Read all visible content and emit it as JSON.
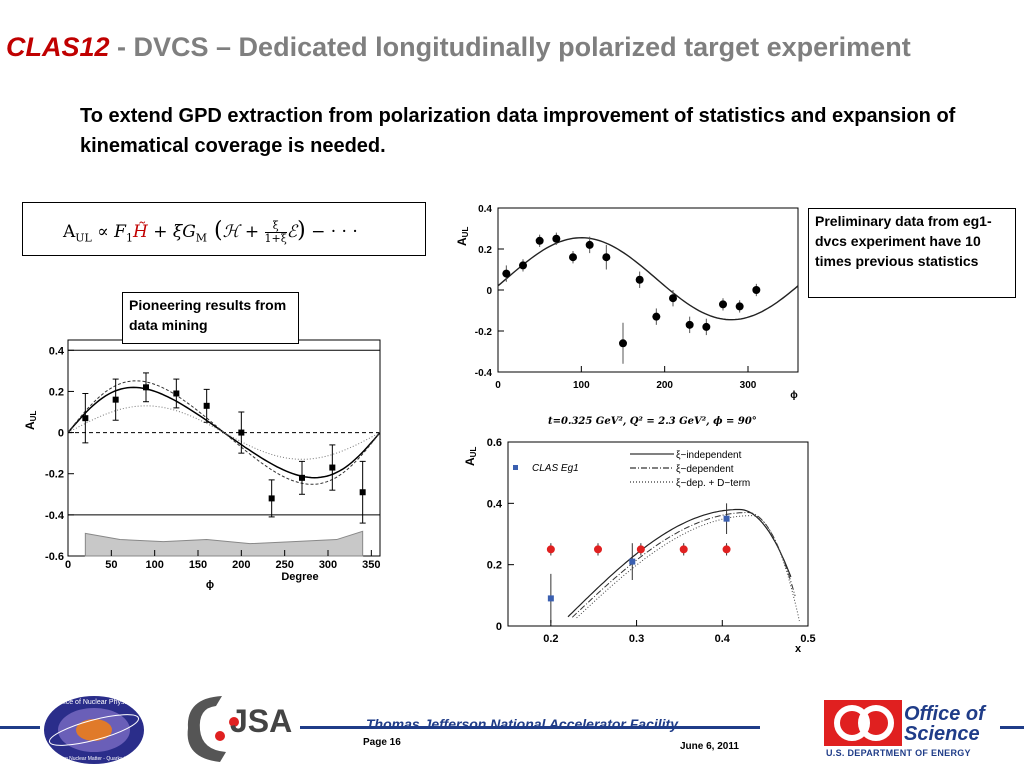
{
  "slide": {
    "title_red": "CLAS12",
    "title_rest": " - DVCS – Dedicated longitudinally polarized target experiment",
    "subtitle": "To extend GPD extraction from polarization data improvement of statistics and expansion of kinematical coverage is needed.",
    "formula": {
      "lhs": "A",
      "lhs_sub": "UL",
      "prop": " ∝ ",
      "f1": "F",
      "f1_sub": "1",
      "h_tilde": "H̃",
      "term2": " + ξG",
      "gm_sub": "M",
      "paren_open": " (",
      "h": "ℋ + ",
      "frac_num": "ξ",
      "frac_den": "1+ξ",
      "e": "ℰ",
      "paren_close": ")",
      "tail": " − · · ·"
    },
    "callout_left": "Pioneering results from data mining",
    "callout_right": "Preliminary data from eg1-dvcs experiment have  10 times previous statistics",
    "kinematics_caption": "t=0.325 GeV², Q² = 2.3 GeV², ϕ = 90°",
    "footer": {
      "lab": "Thomas Jefferson National Accelerator Facility",
      "page": "Page 16",
      "date": "June 6, 2011",
      "doe_line1": "Office of",
      "doe_line2": "Science",
      "doe_sub": "U.S. DEPARTMENT OF ENERGY",
      "jsa": "JSA"
    },
    "logos": {
      "onp_text": "Office of Nuclear Physics",
      "onp_motto": "Exploring Nuclear Matter - Quarks to Stars"
    }
  },
  "chart_data": [
    {
      "type": "scatter",
      "ylabel": "A",
      "ylabel_sub": "UL",
      "xlabel": "Degree",
      "xlabel2": "ϕ",
      "xlim": [
        0,
        360
      ],
      "ylim": [
        -0.6,
        0.45
      ],
      "xticks": [
        "0",
        "50",
        "100",
        "150",
        "200",
        "250",
        "300",
        "350"
      ],
      "yticks": [
        "0.4",
        "0.2",
        "0",
        "-0.2",
        "-0.4",
        "-0.6"
      ],
      "points": [
        {
          "x": 20,
          "y": 0.07,
          "err": 0.12
        },
        {
          "x": 55,
          "y": 0.16,
          "err": 0.1
        },
        {
          "x": 90,
          "y": 0.22,
          "err": 0.07
        },
        {
          "x": 125,
          "y": 0.19,
          "err": 0.07
        },
        {
          "x": 160,
          "y": 0.13,
          "err": 0.08
        },
        {
          "x": 200,
          "y": 0.0,
          "err": 0.1
        },
        {
          "x": 235,
          "y": -0.32,
          "err": 0.09
        },
        {
          "x": 270,
          "y": -0.22,
          "err": 0.08
        },
        {
          "x": 305,
          "y": -0.17,
          "err": 0.11
        },
        {
          "x": 340,
          "y": -0.29,
          "err": 0.15
        }
      ]
    },
    {
      "type": "scatter",
      "ylabel": "A",
      "ylabel_sub": "UL",
      "xlabel": "ϕ",
      "xlim": [
        0,
        360
      ],
      "ylim": [
        -0.4,
        0.4
      ],
      "xticks": [
        "0",
        "100",
        "200",
        "300"
      ],
      "yticks": [
        "0.4",
        "0.2",
        "0",
        "-0.2",
        "-0.4"
      ],
      "points": [
        {
          "x": 10,
          "y": 0.08,
          "err": 0.04
        },
        {
          "x": 30,
          "y": 0.12,
          "err": 0.03
        },
        {
          "x": 50,
          "y": 0.24,
          "err": 0.03
        },
        {
          "x": 70,
          "y": 0.25,
          "err": 0.03
        },
        {
          "x": 90,
          "y": 0.16,
          "err": 0.03
        },
        {
          "x": 110,
          "y": 0.22,
          "err": 0.04
        },
        {
          "x": 130,
          "y": 0.16,
          "err": 0.06
        },
        {
          "x": 150,
          "y": -0.26,
          "err": 0.1
        },
        {
          "x": 170,
          "y": 0.05,
          "err": 0.04
        },
        {
          "x": 190,
          "y": -0.13,
          "err": 0.04
        },
        {
          "x": 210,
          "y": -0.04,
          "err": 0.04
        },
        {
          "x": 230,
          "y": -0.17,
          "err": 0.04
        },
        {
          "x": 250,
          "y": -0.18,
          "err": 0.04
        },
        {
          "x": 270,
          "y": -0.07,
          "err": 0.03
        },
        {
          "x": 290,
          "y": -0.08,
          "err": 0.03
        },
        {
          "x": 310,
          "y": -0.0,
          "err": 0.03
        }
      ]
    },
    {
      "type": "scatter",
      "ylabel": "A",
      "ylabel_sub": "UL",
      "xlabel": "x",
      "xlim": [
        0.15,
        0.5
      ],
      "ylim": [
        0,
        0.6
      ],
      "xticks": [
        "0.2",
        "0.3",
        "0.4",
        "0.5"
      ],
      "yticks": [
        "0.6",
        "0.4",
        "0.2",
        "0"
      ],
      "legend": [
        {
          "label": "ξ−independent",
          "style": "solid"
        },
        {
          "label": "ξ−dependent",
          "style": "dashdot"
        },
        {
          "label": "ξ−dep. + D−term",
          "style": "dotted"
        }
      ],
      "marker_legend": "CLAS Eg1",
      "series": [
        {
          "name": "CLAS Eg1",
          "color": "#3a5fb0",
          "points": [
            {
              "x": 0.2,
              "y": 0.09,
              "err": 0.08
            },
            {
              "x": 0.295,
              "y": 0.21,
              "err": 0.06
            },
            {
              "x": 0.405,
              "y": 0.35,
              "err": 0.05
            }
          ]
        },
        {
          "color": "#e02020",
          "points": [
            {
              "x": 0.2,
              "y": 0.25,
              "err": 0.02
            },
            {
              "x": 0.255,
              "y": 0.25,
              "err": 0.02
            },
            {
              "x": 0.305,
              "y": 0.25,
              "err": 0.02
            },
            {
              "x": 0.355,
              "y": 0.25,
              "err": 0.02
            },
            {
              "x": 0.405,
              "y": 0.25,
              "err": 0.02
            }
          ]
        }
      ]
    }
  ],
  "colors": {
    "title_red": "#c00000",
    "title_gray": "#7f7f7f",
    "footer_blue": "#1f3c88"
  }
}
